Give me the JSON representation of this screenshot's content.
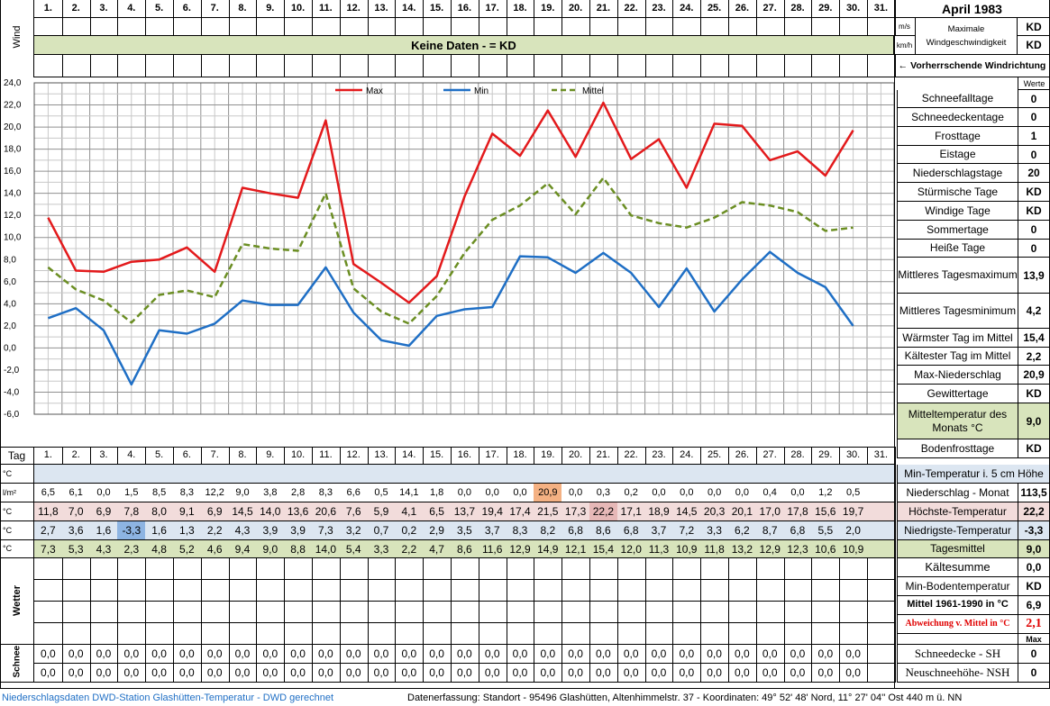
{
  "header": {
    "title": "April 1983",
    "days": [
      "1.",
      "2.",
      "3.",
      "4.",
      "5.",
      "6.",
      "7.",
      "8.",
      "9.",
      "10.",
      "11.",
      "12.",
      "13.",
      "14.",
      "15.",
      "16.",
      "17.",
      "18.",
      "19.",
      "20.",
      "21.",
      "22.",
      "23.",
      "24.",
      "25.",
      "26.",
      "27.",
      "28.",
      "29.",
      "30.",
      "31."
    ],
    "wind_label": "Wind",
    "unit_ms": "m/s",
    "unit_kmh": "km/h",
    "max_wind_label_1": "Maximale",
    "max_wind_label_2": "Windgeschwindigkeit",
    "max_wind_ms": "KD",
    "max_wind_kmh": "KD",
    "no_data": "Keine Daten -  = KD",
    "prevailing_wind": "←  Vorherrschende Windrichtung",
    "werte": "Werte"
  },
  "stats": [
    {
      "label": "Schneefalltage",
      "value": "0"
    },
    {
      "label": "Schneedeckentage",
      "value": "0"
    },
    {
      "label": "Frosttage",
      "value": "1"
    },
    {
      "label": "Eistage",
      "value": "0"
    },
    {
      "label": "Niederschlagstage",
      "value": "20"
    },
    {
      "label": "Stürmische Tage",
      "value": "KD"
    },
    {
      "label": "Windige Tage",
      "value": "KD"
    },
    {
      "label": "Sommertage",
      "value": "0"
    },
    {
      "label": "Heiße Tage",
      "value": "0"
    },
    {
      "label": "Mittleres Tagesmaximum",
      "value": "13,9"
    },
    {
      "label": "Mittleres Tagesminimum",
      "value": "4,2"
    },
    {
      "label": "Wärmster Tag im Mittel",
      "value": "15,4"
    },
    {
      "label": "Kältester Tag im Mittel",
      "value": "2,2"
    },
    {
      "label": "Max-Niederschlag",
      "value": "20,9"
    },
    {
      "label": "Gewittertage",
      "value": "KD"
    },
    {
      "label": "Mitteltemperatur des Monats °C",
      "value": "9,0"
    },
    {
      "label": "Bodenfrosttage",
      "value": "KD"
    }
  ],
  "table": {
    "tag_label": "Tag",
    "unit_c": "°C",
    "unit_lm2": "l/m²",
    "min_5cm_label": "Min-Temperatur i. 5 cm Höhe",
    "precip": [
      "6,5",
      "6,1",
      "0,0",
      "1,5",
      "8,5",
      "8,3",
      "12,2",
      "9,0",
      "3,8",
      "2,8",
      "8,3",
      "6,6",
      "0,5",
      "14,1",
      "1,8",
      "0,0",
      "0,0",
      "0,0",
      "20,9",
      "0,0",
      "0,3",
      "0,2",
      "0,0",
      "0,0",
      "0,0",
      "0,0",
      "0,4",
      "0,0",
      "1,2",
      "0,5"
    ],
    "precip_label": "Niederschlag - Monat",
    "precip_total": "113,5",
    "max": [
      "11,8",
      "7,0",
      "6,9",
      "7,8",
      "8,0",
      "9,1",
      "6,9",
      "14,5",
      "14,0",
      "13,6",
      "20,6",
      "7,6",
      "5,9",
      "4,1",
      "6,5",
      "13,7",
      "19,4",
      "17,4",
      "21,5",
      "17,3",
      "22,2",
      "17,1",
      "18,9",
      "14,5",
      "20,3",
      "20,1",
      "17,0",
      "17,8",
      "15,6",
      "19,7"
    ],
    "max_label": "Höchste-Temperatur",
    "max_total": "22,2",
    "min": [
      "2,7",
      "3,6",
      "1,6",
      "-3,3",
      "1,6",
      "1,3",
      "2,2",
      "4,3",
      "3,9",
      "3,9",
      "7,3",
      "3,2",
      "0,7",
      "0,2",
      "2,9",
      "3,5",
      "3,7",
      "8,3",
      "8,2",
      "6,8",
      "8,6",
      "6,8",
      "3,7",
      "7,2",
      "3,3",
      "6,2",
      "8,7",
      "6,8",
      "5,5",
      "2,0"
    ],
    "min_label": "Niedrigste-Temperatur",
    "min_total": "-3,3",
    "mean": [
      "7,3",
      "5,3",
      "4,3",
      "2,3",
      "4,8",
      "5,2",
      "4,6",
      "9,4",
      "9,0",
      "8,8",
      "14,0",
      "5,4",
      "3,3",
      "2,2",
      "4,7",
      "8,6",
      "11,6",
      "12,9",
      "14,9",
      "12,1",
      "15,4",
      "12,0",
      "11,3",
      "10,9",
      "11,8",
      "13,2",
      "12,9",
      "12,3",
      "10,6",
      "10,9"
    ],
    "mean_label": "Tagesmittel",
    "mean_total": "9,0",
    "weather_label": "Wetter",
    "snow_label": "Schnee",
    "snow_row": "0,0",
    "kaeltesumme_label": "Kältesumme",
    "kaeltesumme": "0,0",
    "min_boden_label": "Min-Bodentemperatur",
    "min_boden": "KD",
    "mittel_label": "Mittel 1961-1990 in °C",
    "mittel": "6,9",
    "abw_label": "Abweichung v. Mittel in °C",
    "abw": "2,1",
    "max_hdr": "Max",
    "schneedecke_label": "Schneedecke -   SH",
    "schneedecke": "0",
    "neuschnee_label": "Neuschneehöhe- NSH",
    "neuschnee": "0"
  },
  "footer": {
    "left": "Niederschlagsdaten DWD-Station Glashütten-Temperatur -  DWD gerechnet",
    "right": "Datenerfassung:  Standort -  95496  Glashütten, Altenhimmelstr. 37 - Koordinaten:  49° 52' 48' Nord,   11° 27' 04'' Ost   440 m ü. NN"
  },
  "colors": {
    "max": "#e31a1c",
    "min": "#1f6fc5",
    "mean": "#6b8e23",
    "green_band": "#d8e4bc",
    "blue_band": "#dce6f1",
    "red_band": "#f2dcdb",
    "orange": "#f4b183",
    "blue_hl": "#8db4e2"
  },
  "chart_data": {
    "type": "line",
    "title": "",
    "x": [
      1,
      2,
      3,
      4,
      5,
      6,
      7,
      8,
      9,
      10,
      11,
      12,
      13,
      14,
      15,
      16,
      17,
      18,
      19,
      20,
      21,
      22,
      23,
      24,
      25,
      26,
      27,
      28,
      29,
      30
    ],
    "ylim": [
      -6,
      24
    ],
    "yticks": [
      "24,0",
      "22,0",
      "20,0",
      "18,0",
      "16,0",
      "14,0",
      "12,0",
      "10,0",
      "8,0",
      "6,0",
      "4,0",
      "2,0",
      "0,0",
      "-2,0",
      "-4,0",
      "-6,0"
    ],
    "grid": true,
    "legend": "top",
    "series": [
      {
        "name": "Max",
        "values": [
          11.8,
          7.0,
          6.9,
          7.8,
          8.0,
          9.1,
          6.9,
          14.5,
          14.0,
          13.6,
          20.6,
          7.6,
          5.9,
          4.1,
          6.5,
          13.7,
          19.4,
          17.4,
          21.5,
          17.3,
          22.2,
          17.1,
          18.9,
          14.5,
          20.3,
          20.1,
          17.0,
          17.8,
          15.6,
          19.7
        ]
      },
      {
        "name": "Min",
        "values": [
          2.7,
          3.6,
          1.6,
          -3.3,
          1.6,
          1.3,
          2.2,
          4.3,
          3.9,
          3.9,
          7.3,
          3.2,
          0.7,
          0.2,
          2.9,
          3.5,
          3.7,
          8.3,
          8.2,
          6.8,
          8.6,
          6.8,
          3.7,
          7.2,
          3.3,
          6.2,
          8.7,
          6.8,
          5.5,
          2.0
        ]
      },
      {
        "name": "Mittel",
        "values": [
          7.3,
          5.3,
          4.3,
          2.3,
          4.8,
          5.2,
          4.6,
          9.4,
          9.0,
          8.8,
          14.0,
          5.4,
          3.3,
          2.2,
          4.7,
          8.6,
          11.6,
          12.9,
          14.9,
          12.1,
          15.4,
          12.0,
          11.3,
          10.9,
          11.8,
          13.2,
          12.9,
          12.3,
          10.6,
          10.9
        ]
      }
    ]
  }
}
